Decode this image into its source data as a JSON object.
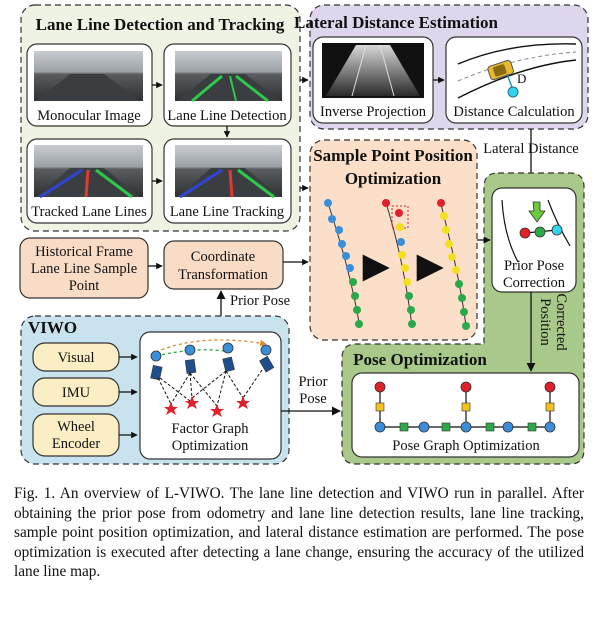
{
  "groups": {
    "lane_line": "Lane Line Detection and Tracking",
    "lateral": "Lateral Distance Estimation",
    "sample_point": [
      "Sample Point Position",
      "Optimization"
    ],
    "viwo": "VIWO",
    "pose_opt": "Pose Optimization"
  },
  "nodes": {
    "monocular_image": "Monocular Image",
    "lane_line_detection": "Lane Line Detection",
    "tracked_lane_lines": "Tracked Lane Lines",
    "lane_line_tracking": "Lane Line Tracking",
    "inverse_projection": "Inverse Projection",
    "distance_calculation": "Distance Calculation",
    "distance_marker": "D",
    "historical_frame": [
      "Historical Frame",
      "Lane Line Sample",
      "Point"
    ],
    "coordinate_transformation": [
      "Coordinate",
      "Transformation"
    ],
    "prior_pose_correction": [
      "Prior Pose",
      "Correction"
    ],
    "visual": "Visual",
    "imu": "IMU",
    "wheel_encoder": [
      "Wheel",
      "Encoder"
    ],
    "factor_graph": [
      "Factor Graph",
      "Optimization"
    ],
    "pose_graph": "Pose Graph Optimization"
  },
  "edge_labels": {
    "lateral_distance": "Lateral Distance",
    "prior_pose_up": "Prior Pose",
    "prior_pose_right": [
      "Prior",
      "Pose"
    ],
    "corrected_position": [
      "Corrected",
      "Position"
    ]
  },
  "caption": "Fig. 1. An overview of L-VIWO. The lane line detection and VIWO run in parallel. After obtaining the prior pose from odometry and lane line detection results, lane line tracking, sample point position optimization, and lateral distance estimation are performed. The pose optimization is executed after detecting a lane change, ensuring the accuracy of the utilized lane line map.",
  "colors": {
    "lane_group_fill": "#eef3e4",
    "lateral_group_fill": "#ddd6ec",
    "sample_group_fill": "#fbdfc9",
    "viwo_group_fill": "#c9e3ee",
    "pose_group_fill": "#a8c98a",
    "input_box_fill": "#fbeec4",
    "transform_box_fill": "#f9dcc6",
    "dot_blue": "#3a8fd8",
    "dot_yellow": "#f2e01e",
    "dot_green": "#2aa84a",
    "dot_red": "#e0202a",
    "lane_green": "#2ec84a",
    "lane_blue": "#3044d8",
    "lane_red": "#e03a30"
  }
}
